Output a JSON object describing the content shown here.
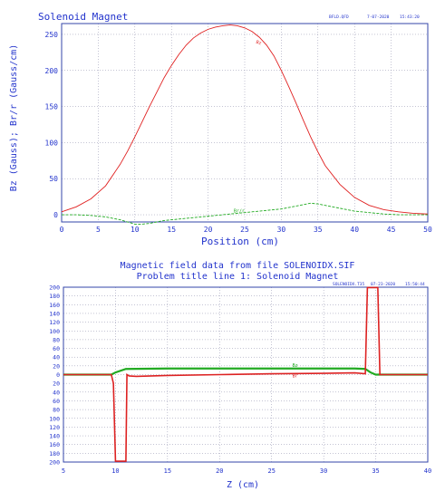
{
  "chart_data": [
    {
      "type": "line",
      "title": "Solenoid Magnet",
      "header_right": [
        "BFLD.QFD",
        "7-07-2020",
        "15:43:20"
      ],
      "xlabel": "Position (cm)",
      "ylabel": "Bz (Gauss); Br/r (Gauss/cm)",
      "xlim": [
        0,
        50
      ],
      "ylim": [
        -10,
        265
      ],
      "xticks": [
        0,
        5,
        10,
        15,
        20,
        25,
        30,
        35,
        40,
        45,
        50
      ],
      "yticks": [
        0,
        50,
        100,
        150,
        200,
        250
      ],
      "grid": true,
      "x": [
        0,
        2,
        4,
        6,
        8,
        9,
        10,
        11,
        12,
        13,
        14,
        15,
        16,
        17,
        18,
        19,
        20,
        21,
        22,
        23,
        24,
        25,
        26,
        27,
        28,
        29,
        30,
        31,
        32,
        33,
        34,
        35,
        36,
        38,
        40,
        42,
        44,
        46,
        48,
        50
      ],
      "series": [
        {
          "name": "Bz",
          "color": "#e02020",
          "dash": false,
          "values": [
            4,
            11,
            22,
            40,
            70,
            88,
            108,
            129,
            150,
            170,
            190,
            207,
            222,
            235,
            245,
            252,
            257,
            260,
            262,
            263,
            262,
            259,
            254,
            246,
            235,
            220,
            200,
            178,
            155,
            131,
            108,
            87,
            68,
            42,
            24,
            13,
            7,
            4,
            2,
            1
          ]
        },
        {
          "name": "Br/r",
          "color": "#20aa20",
          "dash": true,
          "values": [
            0,
            0,
            -1,
            -3,
            -7,
            -10,
            -13,
            -13,
            -12,
            -10,
            -8,
            -7,
            -6,
            -5,
            -4,
            -3,
            -2,
            -1,
            0,
            1,
            2,
            3,
            4,
            5,
            6,
            7,
            8,
            10,
            12,
            14,
            16,
            15,
            13,
            9,
            5,
            3,
            1,
            0,
            0,
            0
          ]
        }
      ]
    },
    {
      "type": "line",
      "title": "Magnetic field data from file SOLENOIDX.SIF",
      "subtitle": "Problem title line 1: Solenoid Magnet",
      "header_right": [
        "SOLENOIDX.T35",
        "07-23-2020",
        "15:50:44"
      ],
      "xlabel": "Z (cm)",
      "ylabel": "",
      "xlim": [
        5,
        40
      ],
      "ylim": [
        -200,
        200
      ],
      "xticks": [
        5,
        10,
        15,
        20,
        25,
        30,
        35,
        40
      ],
      "yticks": [
        200,
        180,
        160,
        140,
        120,
        100,
        80,
        60,
        40,
        20,
        0,
        -20,
        -40,
        -60,
        -80,
        -100,
        -120,
        -140,
        -160,
        -180,
        -200
      ],
      "ytick_labels": [
        "200",
        "180",
        "160",
        "140",
        "120",
        "100",
        "80",
        "60",
        "40",
        "20",
        "0",
        "20",
        "40",
        "60",
        "80",
        "100",
        "120",
        "140",
        "160",
        "180",
        "200"
      ],
      "grid": true,
      "series": [
        {
          "name": "Bz",
          "color": "#22aa22",
          "x": [
            5,
            9.6,
            10,
            11,
            15,
            20,
            25,
            30,
            33,
            34,
            34.5,
            35,
            36,
            40
          ],
          "values": [
            0,
            0,
            5,
            13,
            14,
            14,
            14,
            14,
            14,
            13,
            5,
            0,
            0,
            0
          ]
        },
        {
          "name": "Br",
          "color": "#dd2222",
          "x": [
            5,
            9.6,
            9.8,
            10.0,
            10.2,
            11.0,
            11.1,
            11.3,
            12,
            15,
            20,
            25,
            30,
            33,
            34,
            34.2,
            34.4,
            34.7,
            35.0,
            35.2,
            35.4,
            40
          ],
          "values": [
            0,
            0,
            -20,
            -198,
            -198,
            -198,
            0,
            -3,
            -4,
            -2,
            0,
            2,
            3,
            4,
            2,
            199,
            199,
            199,
            199,
            199,
            0,
            0
          ]
        }
      ]
    }
  ]
}
